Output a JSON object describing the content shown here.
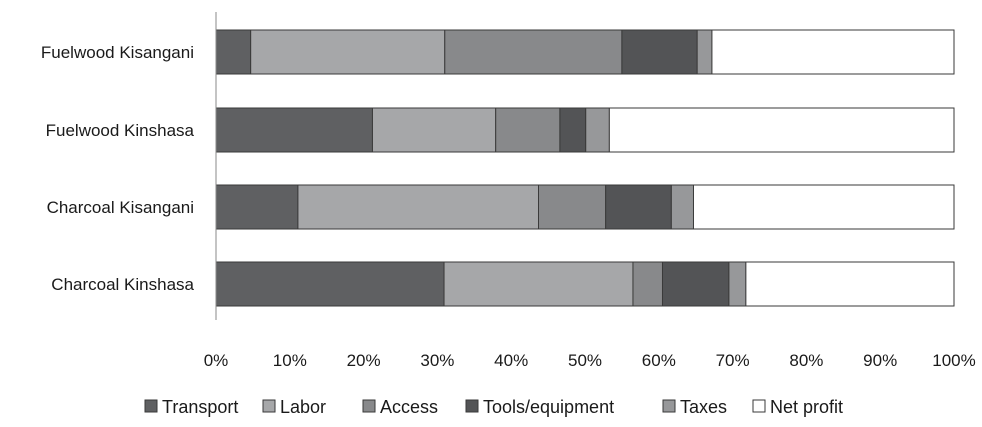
{
  "chart_data": {
    "type": "bar",
    "orientation": "horizontal",
    "stacked": true,
    "percent_stacked": true,
    "categories": [
      "Fuelwood Kisangani",
      "Fuelwood Kinshasa",
      "Charcoal Kisangani",
      "Charcoal Kinshasa"
    ],
    "series": [
      {
        "name": "Transport",
        "color": "#5f6062",
        "values": [
          4.7,
          21.2,
          11.1,
          30.9
        ]
      },
      {
        "name": "Labor",
        "color": "#a6a7a9",
        "values": [
          26.3,
          16.7,
          32.6,
          25.6
        ]
      },
      {
        "name": "Access",
        "color": "#88898b",
        "values": [
          24.0,
          8.7,
          9.1,
          4.0
        ]
      },
      {
        "name": "Tools/equipment",
        "color": "#535456",
        "values": [
          10.2,
          3.5,
          8.9,
          9.0
        ]
      },
      {
        "name": "Taxes",
        "color": "#97989a",
        "values": [
          2.0,
          3.2,
          3.0,
          2.3
        ]
      },
      {
        "name": "Net profit",
        "color": "#ffffff",
        "values": [
          32.8,
          46.7,
          35.3,
          28.2
        ]
      }
    ],
    "xlim": [
      0,
      100
    ],
    "x_ticks": [
      "0%",
      "10%",
      "20%",
      "30%",
      "40%",
      "50%",
      "60%",
      "70%",
      "80%",
      "90%",
      "100%"
    ],
    "grid": false,
    "legend_position": "bottom",
    "title": "",
    "xlabel": "",
    "ylabel": ""
  }
}
